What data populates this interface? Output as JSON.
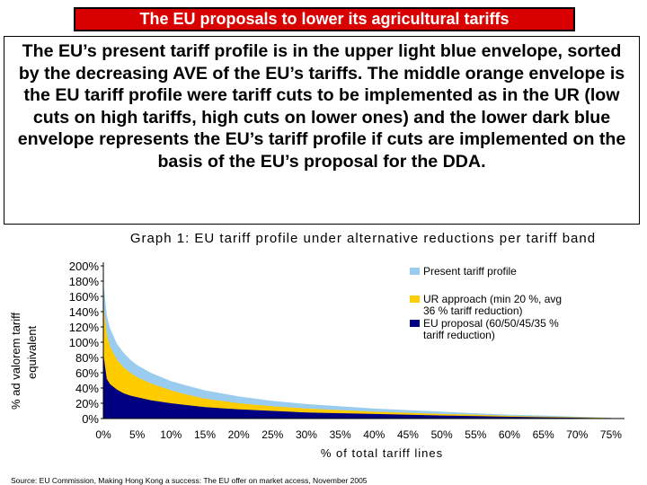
{
  "header": {
    "title": "The EU proposals to lower its agricultural tariffs",
    "description": "The EU’s present tariff profile is in the upper light blue envelope, sorted by the decreasing AVE of the EU’s tariffs. The middle orange envelope is the EU tariff profile were tariff cuts to be implemented as in the UR (low cuts on high tariffs, high cuts on lower ones) and the lower dark blue envelope represents the EU’s tariff profile if cuts are implemented on the basis of the EU’s proposal for the DDA."
  },
  "source": "Source: EU Commission, Making Hong Kong a success: The EU offer on market access, November 2005",
  "chart_data": {
    "type": "area",
    "title": "Graph 1: EU tariff profile under alternative reductions per tariff band",
    "xlabel": "% of total tariff lines",
    "ylabel": [
      "% ad valorem tariff",
      "equivalent"
    ],
    "xlim": [
      0,
      77
    ],
    "ylim": [
      0,
      200
    ],
    "x_ticks": [
      "0%",
      "5%",
      "10%",
      "15%",
      "20%",
      "25%",
      "30%",
      "35%",
      "40%",
      "45%",
      "50%",
      "55%",
      "60%",
      "65%",
      "70%",
      "75%"
    ],
    "y_ticks": [
      "0%",
      "20%",
      "40%",
      "60%",
      "80%",
      "100%",
      "120%",
      "140%",
      "160%",
      "180%",
      "200%"
    ],
    "legend_position": "right",
    "grid": false,
    "x": [
      0,
      0.5,
      1,
      2,
      3,
      4,
      5,
      7,
      10,
      12,
      15,
      20,
      25,
      30,
      35,
      40,
      45,
      50,
      55,
      60,
      65,
      70,
      75
    ],
    "series": [
      {
        "name": "Present tariff profile",
        "color": "#99ccee",
        "values": [
          178,
          135,
          118,
          98,
          86,
          77,
          70,
          60,
          49,
          44,
          37,
          29,
          23,
          19,
          16,
          13,
          11,
          9,
          7,
          5,
          4,
          2.5,
          1
        ]
      },
      {
        "name": "UR approach (min 20 %, avg 36 % tariff reduction)",
        "color": "#ffcc00",
        "values": [
          150,
          110,
          94,
          77,
          67,
          60,
          54,
          46,
          37,
          32,
          26,
          20,
          16,
          13,
          11,
          9,
          7.5,
          6,
          5,
          3.5,
          2.5,
          1.6,
          0.6
        ]
      },
      {
        "name": "EU proposal (60/50/45/35 % tariff reduction)",
        "color": "#000080",
        "values": [
          85,
          52,
          45,
          38,
          33,
          30,
          28,
          24,
          20,
          18,
          15,
          12,
          10,
          8,
          7,
          6,
          5,
          4,
          3.2,
          2.4,
          1.7,
          1,
          0.4
        ]
      }
    ]
  }
}
